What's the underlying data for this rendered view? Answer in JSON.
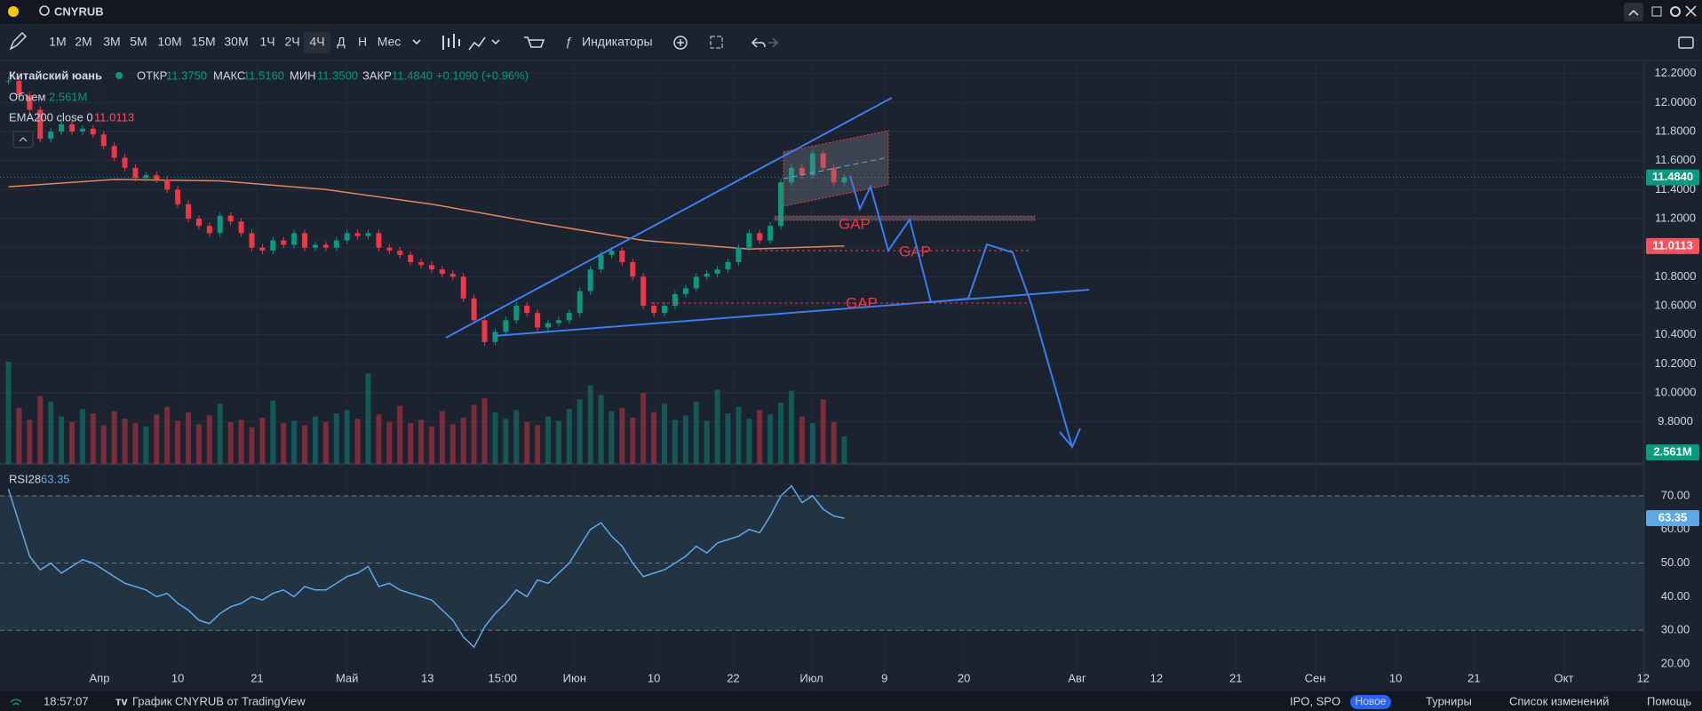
{
  "topbar": {
    "symbol": "CNYRUB"
  },
  "toolbar": {
    "timeframes": [
      "1М",
      "2М",
      "3М",
      "5М",
      "10М",
      "15М",
      "30М",
      "1Ч",
      "2Ч",
      "4Ч",
      "Д",
      "Н",
      "Мес"
    ],
    "active": "4Ч",
    "indicators": "Индикаторы"
  },
  "legend": {
    "name": "Китайский юань",
    "open_label": "ОТКР",
    "open": "11.3750",
    "high_label": "МАКС",
    "high": "11.5160",
    "low_label": "МИН",
    "low": "11.3500",
    "close_label": "ЗАКР",
    "close": {
      "value": 11.484,
      "label": "11.4840"
    },
    "change": "+0.1090 (+0.96%)",
    "volume_label": "Объем",
    "volume": {
      "value": 2.561,
      "label": "2.561M"
    },
    "ema_label": "EMA200 close 0",
    "ema": {
      "value": 11.0113,
      "label": "11.0113"
    },
    "rsi_label": "RSI28"
  },
  "annotations": [
    "GAP",
    "GAP",
    "GAP"
  ],
  "chart_data": {
    "type": "candlestick",
    "xlim": [
      -0.8,
      154.6
    ],
    "xticks": [
      {
        "value": 8.6,
        "label": "Апр"
      },
      {
        "value": 16,
        "label": "10"
      },
      {
        "value": 23.5,
        "label": "21"
      },
      {
        "value": 32,
        "label": "Май"
      },
      {
        "value": 39.6,
        "label": "13"
      },
      {
        "value": 46.7,
        "label": "15:00"
      },
      {
        "value": 53.5,
        "label": "Июн"
      },
      {
        "value": 61,
        "label": "10"
      },
      {
        "value": 68.5,
        "label": "22"
      },
      {
        "value": 75.9,
        "label": "Июл"
      },
      {
        "value": 82.8,
        "label": "9"
      },
      {
        "value": 90.3,
        "label": "20"
      },
      {
        "value": 101,
        "label": "Авг"
      },
      {
        "value": 108.5,
        "label": "12"
      },
      {
        "value": 116,
        "label": "21"
      },
      {
        "value": 123.5,
        "label": "Сен"
      },
      {
        "value": 131.1,
        "label": "10"
      },
      {
        "value": 138.5,
        "label": "21"
      },
      {
        "value": 147,
        "label": "Окт"
      },
      {
        "value": 154.5,
        "label": "12"
      }
    ],
    "ylim": [
      9.51,
      12.29
    ],
    "yticks": [
      {
        "value": 9.8,
        "label": "9.8000"
      },
      {
        "value": 10,
        "label": "10.0000"
      },
      {
        "value": 10.2,
        "label": "10.2000"
      },
      {
        "value": 10.4,
        "label": "10.4000"
      },
      {
        "value": 10.6,
        "label": "10.6000"
      },
      {
        "value": 10.8,
        "label": "10.8000"
      },
      {
        "value": 11,
        "label": "11.0000"
      },
      {
        "value": 11.2,
        "label": "11.2000"
      },
      {
        "value": 11.4,
        "label": "11.4000"
      },
      {
        "value": 11.6,
        "label": "11.6000"
      },
      {
        "value": 11.8,
        "label": "11.8000"
      },
      {
        "value": 12,
        "label": "12.0000"
      },
      {
        "value": 12.2,
        "label": "12.2000"
      }
    ],
    "close": [
      12.15,
      12.05,
      11.95,
      11.75,
      11.8,
      11.85,
      11.8,
      11.82,
      11.78,
      11.7,
      11.62,
      11.55,
      11.48,
      11.5,
      11.47,
      11.4,
      11.3,
      11.2,
      11.15,
      11.1,
      11.22,
      11.18,
      11.1,
      11.0,
      10.98,
      11.05,
      11.02,
      11.1,
      11.0,
      11.02,
      11.0,
      11.05,
      11.1,
      11.08,
      11.1,
      11.0,
      10.98,
      10.95,
      10.9,
      10.88,
      10.85,
      10.82,
      10.8,
      10.65,
      10.5,
      10.35,
      10.42,
      10.5,
      10.6,
      10.55,
      10.45,
      10.48,
      10.5,
      10.55,
      10.7,
      10.85,
      10.95,
      10.98,
      10.9,
      10.8,
      10.6,
      10.55,
      10.6,
      10.68,
      10.72,
      10.8,
      10.82,
      10.85,
      10.9,
      11.0,
      11.1,
      11.05,
      11.15,
      11.45,
      11.55,
      11.5,
      11.65,
      11.55,
      11.45,
      11.484
    ],
    "up_color": "#089981",
    "down_color": "#f23645",
    "ema": {
      "x": [
        0,
        10,
        20,
        30,
        40,
        50,
        60,
        70,
        79
      ],
      "values": [
        11.42,
        11.47,
        11.46,
        11.4,
        11.3,
        11.17,
        11.05,
        10.99,
        11.0113
      ],
      "color": "#e0875a"
    },
    "volume": [
      9.5,
      5.2,
      4.1,
      6.3,
      5.8,
      4.4,
      3.9,
      5.1,
      4.7,
      3.6,
      4.9,
      4.2,
      3.8,
      3.5,
      4.6,
      5.3,
      4.0,
      4.8,
      3.7,
      4.5,
      5.6,
      3.9,
      4.1,
      3.4,
      4.3,
      5.9,
      3.8,
      4.0,
      3.6,
      4.4,
      3.9,
      4.7,
      5.0,
      4.2,
      8.4,
      4.6,
      3.9,
      5.4,
      3.8,
      4.1,
      3.5,
      4.9,
      3.7,
      4.3,
      5.5,
      6.1,
      4.8,
      4.2,
      5.0,
      3.9,
      3.6,
      4.4,
      4.0,
      5.1,
      6.0,
      7.3,
      6.4,
      4.9,
      5.2,
      4.3,
      6.6,
      4.8,
      5.6,
      4.1,
      4.5,
      5.8,
      4.0,
      6.9,
      4.7,
      5.3,
      4.2,
      5.0,
      4.6,
      5.7,
      6.8,
      4.4,
      3.8,
      6.0,
      3.9,
      2.561
    ],
    "rsi": {
      "values": [
        72,
        62,
        52,
        48,
        50,
        47,
        49,
        51,
        50,
        48,
        46,
        44,
        43,
        42,
        40,
        41,
        38,
        36,
        33,
        32,
        35,
        37,
        38,
        40,
        39,
        41,
        42,
        40,
        43,
        42,
        42,
        44,
        46,
        47,
        49,
        43,
        44,
        42,
        41,
        40,
        39,
        36,
        33,
        28,
        25,
        31,
        35,
        38,
        42,
        40,
        45,
        44,
        47,
        50,
        55,
        60,
        62,
        58,
        55,
        50,
        46,
        47,
        48,
        50,
        52,
        55,
        53,
        56,
        57,
        58,
        60,
        59,
        64,
        70,
        73,
        68,
        70,
        66,
        64,
        63.35
      ],
      "color": "#5fa8e8",
      "ylim": [
        13.4,
        78.7
      ],
      "yticks": [
        {
          "value": 20,
          "label": "20.00"
        },
        {
          "value": 30,
          "label": "30.00"
        },
        {
          "value": 40,
          "label": "40.00"
        },
        {
          "value": 50,
          "label": "50.00"
        },
        {
          "value": 60,
          "label": "60.00"
        },
        {
          "value": 70,
          "label": "70.00"
        }
      ],
      "bands": [
        30,
        50,
        70
      ]
    }
  },
  "statusbar": {
    "time": "18:57:07",
    "chart_of": "График CNYRUB от TradingView",
    "ipo": "IPO, SPO",
    "new_badge": "Новое",
    "tournaments": "Турниры",
    "changelog": "Список изменений",
    "help": "Помощь"
  }
}
